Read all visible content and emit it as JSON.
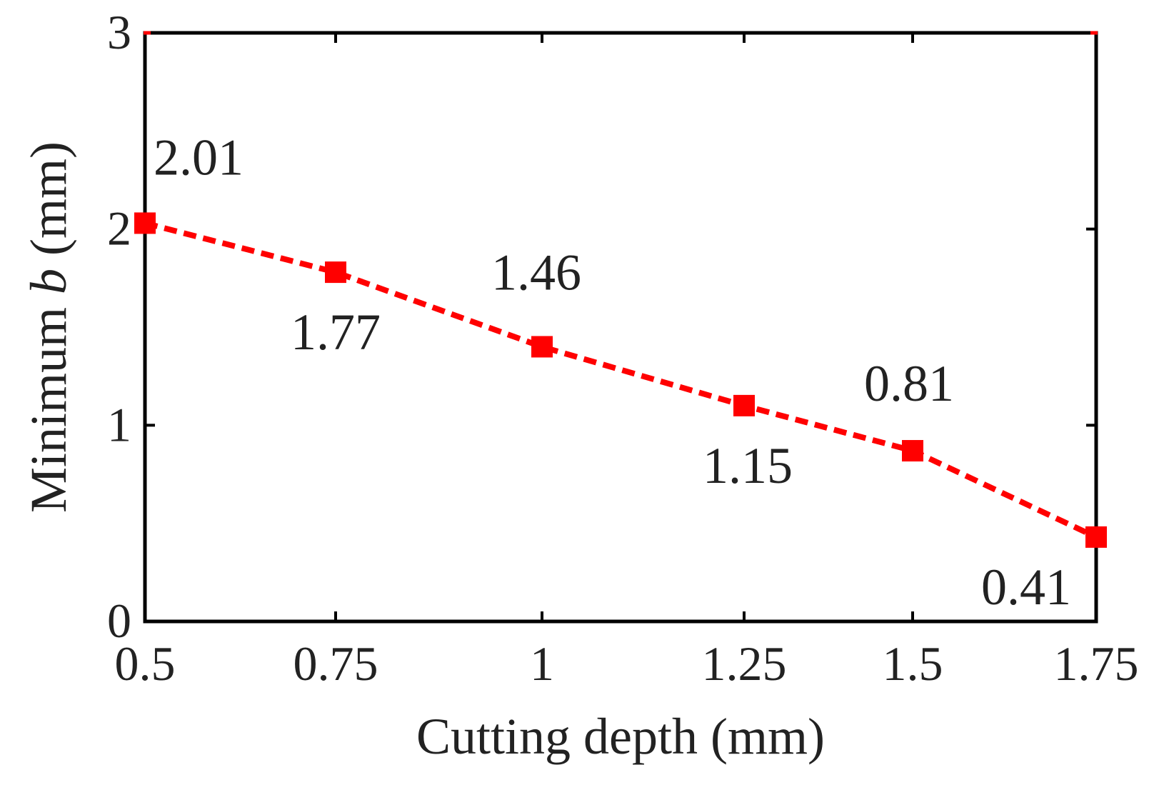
{
  "chart_data": {
    "type": "line",
    "x": [
      0.5,
      0.75,
      1,
      1.25,
      1.5,
      1.75
    ],
    "values": [
      2.01,
      1.77,
      1.46,
      1.15,
      0.81,
      0.41
    ],
    "plotted_y": [
      2.03,
      1.78,
      1.4,
      1.1,
      0.87,
      0.43
    ],
    "data_labels": [
      "2.01",
      "1.77",
      "1.46",
      "1.15",
      "0.81",
      "0.41"
    ],
    "x_tick_labels": [
      "0.5",
      "0.75",
      "1",
      "1.25",
      "1.5",
      "1.75"
    ],
    "y_ticks": [
      0,
      1,
      2,
      3
    ],
    "y_tick_labels": [
      "0",
      "1",
      "2",
      "3"
    ],
    "xlim": [
      0.5,
      1.75
    ],
    "ylim": [
      0,
      3
    ],
    "xlabel": "Cutting depth (mm)",
    "ylabel_prefix": "Minimum ",
    "ylabel_var": "b",
    "ylabel_suffix": " (mm)",
    "grid": false,
    "series_color": "#ff0000",
    "line_style": "dashed",
    "marker": "square",
    "title": ""
  }
}
